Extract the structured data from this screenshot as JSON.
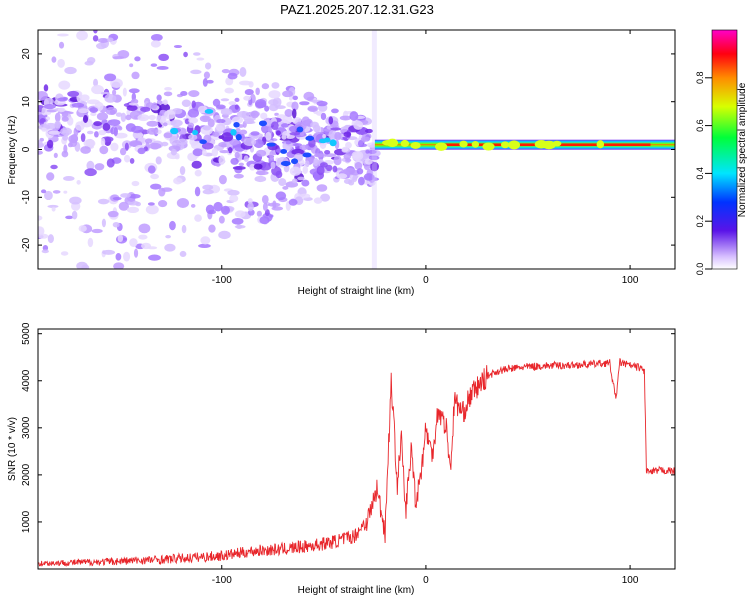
{
  "title": "PAZ1.2025.207.12.31.G23",
  "colors": {
    "background": "#ffffff",
    "axis": "#000000",
    "snr_line": "#e8262b",
    "speckle_light": "#d2b8ff",
    "speckle_dark": "#6a17e0"
  },
  "chart_data": [
    {
      "type": "heatmap",
      "name": "spectrogram",
      "xlabel": "Height of straight line (km)",
      "ylabel": "Frequency (Hz)",
      "xlim": [
        -190,
        122
      ],
      "ylim": [
        -25,
        25
      ],
      "xticks": [
        -100,
        0,
        100
      ],
      "xtick_labels": [
        "-100",
        "0",
        "100"
      ],
      "yticks": [
        -20,
        -10,
        0,
        10,
        20
      ],
      "ytick_labels": [
        "-20",
        "-10",
        "0",
        "10",
        "20"
      ],
      "colorbar": {
        "label": "Normalized spectral amplitude",
        "range": [
          0,
          1
        ],
        "ticks": [
          0,
          0.2,
          0.4,
          0.6,
          0.8
        ],
        "tick_labels": [
          "0.0",
          "0.2",
          "0.4",
          "0.6",
          "0.8"
        ],
        "colormap": "rainbow (violet to magenta)"
      },
      "features": {
        "noise_region_end_km": -25,
        "signal_line_start_km": -25,
        "signal_line_frequency_hz": 1,
        "signal_peak_amplitude": 0.8
      },
      "grid": false
    },
    {
      "type": "line",
      "name": "snr",
      "xlabel": "Height of straight line (km)",
      "ylabel": "SNR (10 * v/v)",
      "xlim": [
        -190,
        122
      ],
      "ylim": [
        0,
        5100
      ],
      "xticks": [
        -100,
        0,
        100
      ],
      "xtick_labels": [
        "-100",
        "0",
        "100"
      ],
      "yticks": [
        1000,
        2000,
        3000,
        4000,
        5000
      ],
      "ytick_labels": [
        "1000",
        "2000",
        "3000",
        "4000",
        "5000"
      ],
      "grid": false,
      "series": [
        {
          "x": [
            -190,
            -160,
            -130,
            -100,
            -85,
            -70,
            -55,
            -45,
            -35,
            -28,
            -24,
            -20,
            -17,
            -14,
            -12,
            -10,
            -7,
            -5,
            -2,
            0,
            3,
            6,
            10,
            12,
            14,
            18,
            22,
            26,
            30,
            35,
            40,
            50,
            60,
            70,
            80,
            90,
            93,
            95,
            98,
            102,
            105,
            107,
            108,
            110,
            115,
            122
          ],
          "y": [
            120,
            150,
            200,
            280,
            380,
            420,
            500,
            580,
            700,
            1100,
            1700,
            800,
            4000,
            1800,
            2800,
            1200,
            2600,
            1400,
            2200,
            3000,
            2400,
            3400,
            3000,
            2100,
            3600,
            3300,
            3700,
            3900,
            4100,
            4200,
            4250,
            4300,
            4320,
            4330,
            4350,
            4380,
            3600,
            4400,
            4350,
            4300,
            4280,
            4200,
            2100,
            2050,
            2100,
            2080
          ]
        }
      ]
    }
  ]
}
